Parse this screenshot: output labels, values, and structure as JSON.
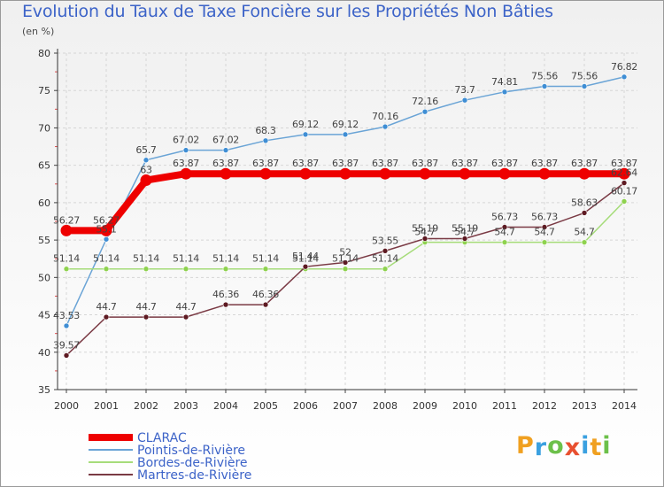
{
  "chart_data": {
    "type": "line",
    "title": "Evolution du Taux de Taxe Foncière sur les Propriétés Non Bâties",
    "ylabel": "(en %)",
    "xlabel": "",
    "x": [
      "2000",
      "2001",
      "2002",
      "2003",
      "2004",
      "2005",
      "2006",
      "2007",
      "2008",
      "2009",
      "2010",
      "2011",
      "2012",
      "2013",
      "2014"
    ],
    "ylim": [
      35,
      80
    ],
    "yticks": [
      "35",
      "40",
      "45",
      "50",
      "55",
      "60",
      "65",
      "70",
      "75",
      "80"
    ],
    "grid": true,
    "legend_position": "bottom-left",
    "series": [
      {
        "name": "CLARAC",
        "color": "#ee0000",
        "emphasis": true,
        "values": [
          56.27,
          56.27,
          63,
          63.87,
          63.87,
          63.87,
          63.87,
          63.87,
          63.87,
          63.87,
          63.87,
          63.87,
          63.87,
          63.87,
          63.87
        ],
        "labels": [
          "56.27",
          "56.27",
          "63",
          "63.87",
          "63.87",
          "63.87",
          "63.87",
          "63.87",
          "63.87",
          "63.87",
          "63.87",
          "63.87",
          "63.87",
          "63.87",
          "63.87"
        ]
      },
      {
        "name": "Pointis-de-Rivière",
        "color": "#6aa4d6",
        "marker_color": "#3f8ed4",
        "values": [
          43.53,
          55.1,
          65.7,
          67.02,
          67.02,
          68.3,
          69.12,
          69.12,
          70.16,
          72.16,
          73.7,
          74.81,
          75.56,
          75.56,
          76.82
        ],
        "labels": [
          "43.53",
          "55.1",
          "65.7",
          "67.02",
          "67.02",
          "68.3",
          "69.12",
          "69.12",
          "70.16",
          "72.16",
          "73.7",
          "74.81",
          "75.56",
          "75.56",
          "76.82"
        ]
      },
      {
        "name": "Bordes-de-Rivière",
        "color": "#a6dc7a",
        "marker_color": "#8ed24e",
        "values": [
          51.14,
          51.14,
          51.14,
          51.14,
          51.14,
          51.14,
          51.14,
          51.14,
          51.14,
          54.7,
          54.7,
          54.7,
          54.7,
          54.7,
          60.17
        ],
        "labels": [
          "51.14",
          "51.14",
          "51.14",
          "51.14",
          "51.14",
          "51.14",
          "51.14",
          "51.14",
          "51.14",
          "54.7",
          "54.7",
          "54.7",
          "54.7",
          "54.7",
          "60.17"
        ]
      },
      {
        "name": "Martres-de-Rivière",
        "color": "#7a3a44",
        "marker_color": "#5e1a22",
        "values": [
          39.57,
          44.7,
          44.7,
          44.7,
          46.36,
          46.36,
          51.44,
          52,
          53.55,
          55.19,
          55.19,
          56.73,
          56.73,
          58.63,
          62.64
        ],
        "labels": [
          "39.57",
          "44.7",
          "44.7",
          "44.7",
          "46.36",
          "46.36",
          "51.44",
          "52",
          "53.55",
          "55.19",
          "55.19",
          "56.73",
          "56.73",
          "58.63",
          "62.64"
        ]
      }
    ]
  },
  "logo": {
    "letters": [
      "P",
      "r",
      "o",
      "x",
      "i",
      "t",
      "i"
    ],
    "colors": [
      "#f0a020",
      "#3aa0e0",
      "#6cc04a",
      "#e85030",
      "#3aa0e0",
      "#f0a020",
      "#6cc04a"
    ]
  }
}
